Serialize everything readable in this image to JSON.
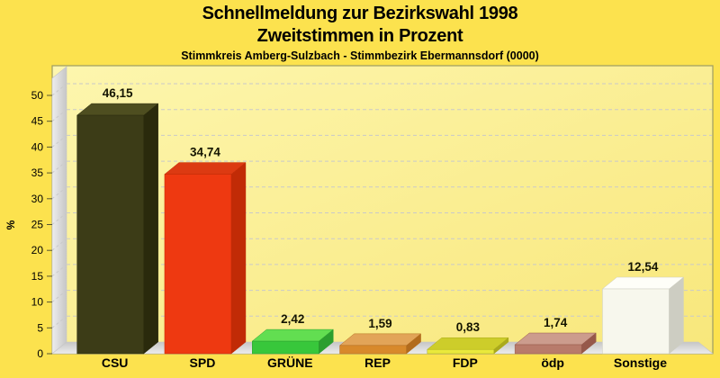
{
  "header": {
    "title_line1": "Schnellmeldung zur Bezirkswahl 1998",
    "title_line2": "Zweitstimmen in Prozent",
    "subtitle": "Stimmkreis Amberg-Sulzbach - Stimmbezirk Ebermannsdorf (0000)"
  },
  "chart_data": {
    "type": "bar",
    "title": "Schnellmeldung zur Bezirkswahl 1998",
    "subtitle": "Zweitstimmen in Prozent",
    "annotation": "Stimmkreis Amberg-Sulzbach - Stimmbezirk Ebermannsdorf (0000)",
    "categories": [
      "CSU",
      "SPD",
      "GRÜNE",
      "REP",
      "FDP",
      "ödp",
      "Sonstige"
    ],
    "values": [
      46.15,
      34.74,
      2.42,
      1.59,
      0.83,
      1.74,
      12.54
    ],
    "value_labels": [
      "46,15",
      "34,74",
      "2,42",
      "1,59",
      "0,83",
      "1,74",
      "12,54"
    ],
    "xlabel": "",
    "ylabel": "%",
    "ylim": [
      0,
      50
    ],
    "ytick_step": 5,
    "ytick_labels": [
      "0",
      "5",
      "10",
      "15",
      "20",
      "25",
      "30",
      "35",
      "40",
      "45",
      "50"
    ],
    "grid": "horizontal-dashed",
    "legend": "none",
    "style": "3d-bars",
    "bar_styles": [
      {
        "category": "CSU",
        "front": "#3C3C17",
        "top": "#4E4E20",
        "side": "#2A2A0C"
      },
      {
        "category": "SPD",
        "front": "#EE3911",
        "top": "#DC3A12",
        "side": "#C12B06"
      },
      {
        "category": "GRÜNE",
        "front": "#38C73B",
        "top": "#62DE51",
        "side": "#2B9E2E"
      },
      {
        "category": "REP",
        "front": "#D8892B",
        "top": "#E2A458",
        "side": "#B26B1D"
      },
      {
        "category": "FDP",
        "front": "#E9E93C",
        "top": "#CDCD2A",
        "side": "#AAAA1C"
      },
      {
        "category": "ödp",
        "front": "#B87B6B",
        "top": "#CC9C8D",
        "side": "#96584A"
      },
      {
        "category": "Sonstige",
        "front": "#F7F7ED",
        "top": "#FEFEF8",
        "side": "#CDCDC2"
      }
    ]
  },
  "colors": {
    "background": "#FCE24E",
    "panel_fill_start": "#FDF6AE",
    "panel_fill_end": "#F8E77B",
    "panel_border": "#9C9C63",
    "wall_light": "#EDEDED",
    "wall_dark": "#C6C6C6",
    "floor": "#D6D6D6",
    "gridline": "#C9C9C9",
    "text": "#000000",
    "value_label": "#141400"
  }
}
